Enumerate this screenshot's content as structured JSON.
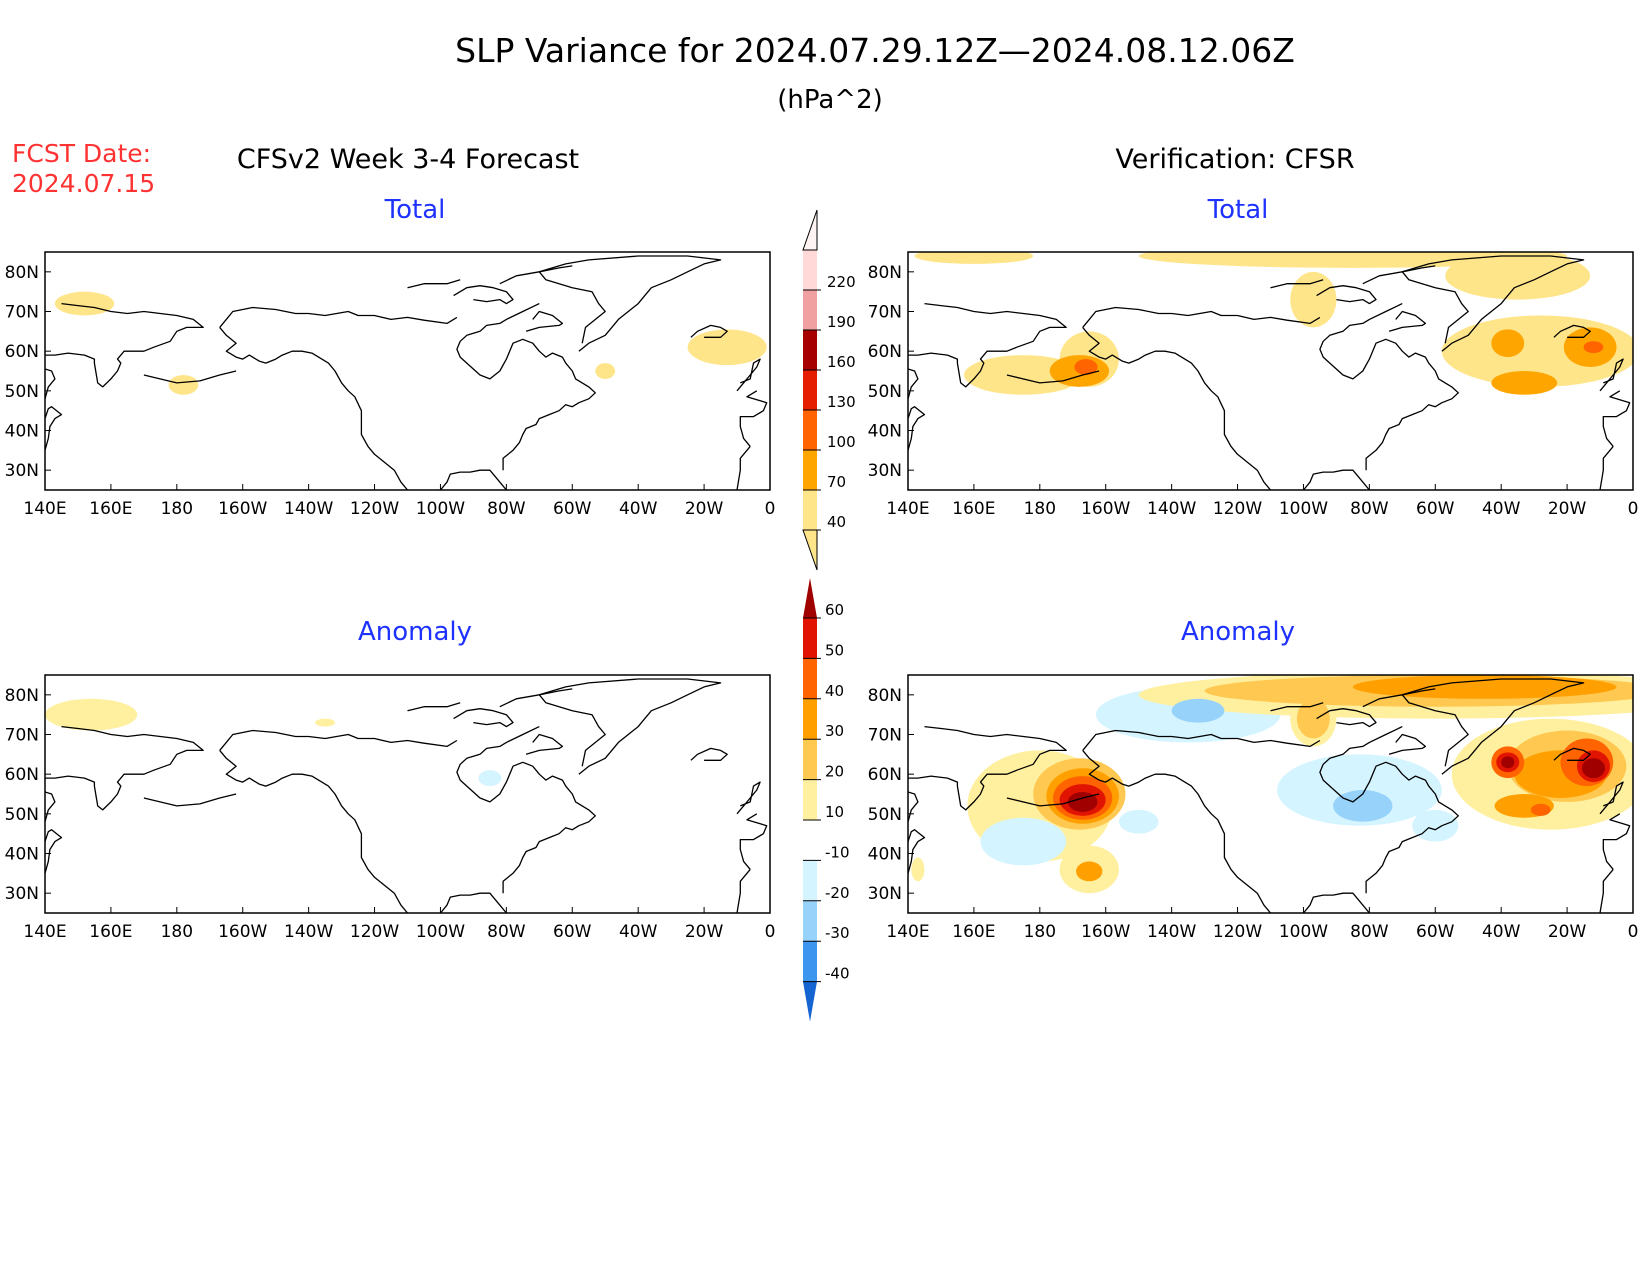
{
  "figure": {
    "title": "SLP Variance for 2024.07.29.12Z—2024.08.12.06Z",
    "units": "(hPa^2)",
    "fcst_date_label": "FCST Date:",
    "fcst_date_value": "2024.07.15",
    "left_column_title": "CFSv2 Week 3-4 Forecast",
    "right_column_title": "Verification: CFSR"
  },
  "panels": [
    {
      "id": "forecast-total",
      "subtitle": "Total",
      "subtitle_color": "#1e32ff",
      "field": "total",
      "contours": [
        {
          "value": 40,
          "cx": 152,
          "cy": 72,
          "rx": 9,
          "ry": 3
        },
        {
          "value": 40,
          "cx": -178,
          "cy": 51.5,
          "rx": 4.5,
          "ry": 2.5
        },
        {
          "value": 40,
          "cx": -50,
          "cy": 55,
          "rx": 3,
          "ry": 2
        },
        {
          "value": 40,
          "cx": -13,
          "cy": 61,
          "rx": 12,
          "ry": 4.5
        }
      ]
    },
    {
      "id": "verification-total",
      "subtitle": "Total",
      "subtitle_color": "#1e32ff",
      "field": "total",
      "contours": [
        {
          "value": 40,
          "cx": 175,
          "cy": 54,
          "rx": 18,
          "ry": 5
        },
        {
          "value": 40,
          "cx": -165,
          "cy": 58,
          "rx": 9,
          "ry": 7
        },
        {
          "value": 70,
          "cx": -168,
          "cy": 55,
          "rx": 9,
          "ry": 4
        },
        {
          "value": 100,
          "cx": -166,
          "cy": 56,
          "rx": 3.5,
          "ry": 2
        },
        {
          "value": 40,
          "cx": -85,
          "cy": 84,
          "rx": 65,
          "ry": 3
        },
        {
          "value": 40,
          "cx": -97,
          "cy": 73,
          "rx": 7,
          "ry": 7
        },
        {
          "value": 40,
          "cx": -28,
          "cy": 60,
          "rx": 30,
          "ry": 9
        },
        {
          "value": 40,
          "cx": -35,
          "cy": 79,
          "rx": 22,
          "ry": 6
        },
        {
          "value": 70,
          "cx": -38,
          "cy": 62,
          "rx": 5,
          "ry": 3.5
        },
        {
          "value": 70,
          "cx": -13,
          "cy": 61,
          "rx": 8,
          "ry": 5
        },
        {
          "value": 70,
          "cx": -33,
          "cy": 52,
          "rx": 10,
          "ry": 3
        },
        {
          "value": 100,
          "cx": -12,
          "cy": 61,
          "rx": 3,
          "ry": 1.5
        },
        {
          "value": 40,
          "cx": 160,
          "cy": 84,
          "rx": 18,
          "ry": 2
        }
      ]
    },
    {
      "id": "forecast-anomaly",
      "subtitle": "Anomaly",
      "subtitle_color": "#1e32ff",
      "field": "anomaly",
      "contours": [
        {
          "value": 10,
          "cx": 154,
          "cy": 75,
          "rx": 14,
          "ry": 4
        },
        {
          "value": 10,
          "cx": -135,
          "cy": 73,
          "rx": 3,
          "ry": 1
        },
        {
          "value": -10,
          "cx": -85,
          "cy": 59,
          "rx": 3.5,
          "ry": 2
        }
      ]
    },
    {
      "id": "verification-anomaly",
      "subtitle": "Anomaly",
      "subtitle_color": "#1e32ff",
      "field": "anomaly",
      "contours": [
        {
          "value": 10,
          "cx": 180,
          "cy": 52,
          "rx": 22,
          "ry": 14
        },
        {
          "value": 20,
          "cx": -168,
          "cy": 55,
          "rx": 14,
          "ry": 9
        },
        {
          "value": 30,
          "cx": -167,
          "cy": 54.5,
          "rx": 11,
          "ry": 7
        },
        {
          "value": 40,
          "cx": -167,
          "cy": 54,
          "rx": 9,
          "ry": 5.5
        },
        {
          "value": 50,
          "cx": -167,
          "cy": 53.5,
          "rx": 7,
          "ry": 4
        },
        {
          "value": 60,
          "cx": -167,
          "cy": 53,
          "rx": 4.5,
          "ry": 2.5
        },
        {
          "value": 10,
          "cx": -165,
          "cy": 36,
          "rx": 9,
          "ry": 6
        },
        {
          "value": 30,
          "cx": -165,
          "cy": 35.5,
          "rx": 4,
          "ry": 2.5
        },
        {
          "value": -10,
          "cx": -135,
          "cy": 75,
          "rx": 28,
          "ry": 7
        },
        {
          "value": -20,
          "cx": -132,
          "cy": 76,
          "rx": 8,
          "ry": 3
        },
        {
          "value": -10,
          "cx": 175,
          "cy": 43,
          "rx": 13,
          "ry": 6
        },
        {
          "value": -10,
          "cx": -150,
          "cy": 48,
          "rx": 6,
          "ry": 3
        },
        {
          "value": -10,
          "cx": -83,
          "cy": 56,
          "rx": 25,
          "ry": 9
        },
        {
          "value": -20,
          "cx": -82,
          "cy": 52,
          "rx": 9,
          "ry": 4
        },
        {
          "value": -10,
          "cx": -60,
          "cy": 47,
          "rx": 7,
          "ry": 4
        },
        {
          "value": 10,
          "cx": -60,
          "cy": 80,
          "rx": 90,
          "ry": 6
        },
        {
          "value": 20,
          "cx": -60,
          "cy": 81,
          "rx": 70,
          "ry": 4
        },
        {
          "value": 30,
          "cx": -45,
          "cy": 82,
          "rx": 40,
          "ry": 3
        },
        {
          "value": 10,
          "cx": -97,
          "cy": 74,
          "rx": 7,
          "ry": 7
        },
        {
          "value": 20,
          "cx": -97,
          "cy": 74,
          "rx": 5,
          "ry": 5
        },
        {
          "value": 10,
          "cx": -25,
          "cy": 60,
          "rx": 30,
          "ry": 14
        },
        {
          "value": 20,
          "cx": -20,
          "cy": 62,
          "rx": 18,
          "ry": 9
        },
        {
          "value": 30,
          "cx": -22,
          "cy": 60,
          "rx": 14,
          "ry": 6
        },
        {
          "value": 40,
          "cx": -14,
          "cy": 63,
          "rx": 8,
          "ry": 6
        },
        {
          "value": 50,
          "cx": -12,
          "cy": 62,
          "rx": 5,
          "ry": 4
        },
        {
          "value": 60,
          "cx": -12,
          "cy": 61.5,
          "rx": 3.5,
          "ry": 2.5
        },
        {
          "value": 40,
          "cx": -38,
          "cy": 63,
          "rx": 5,
          "ry": 4
        },
        {
          "value": 50,
          "cx": -38,
          "cy": 63,
          "rx": 3.5,
          "ry": 2.5
        },
        {
          "value": 60,
          "cx": -38,
          "cy": 63,
          "rx": 2,
          "ry": 1.5
        },
        {
          "value": 30,
          "cx": -33,
          "cy": 52,
          "rx": 9,
          "ry": 3
        },
        {
          "value": 40,
          "cx": -28,
          "cy": 51,
          "rx": 3,
          "ry": 1.5
        },
        {
          "value": 10,
          "cx": 143,
          "cy": 36,
          "rx": 2,
          "ry": 3
        }
      ]
    }
  ],
  "axes": {
    "lon_ticks": [
      "140E",
      "160E",
      "180",
      "160W",
      "140W",
      "120W",
      "100W",
      "80W",
      "60W",
      "40W",
      "20W",
      "0"
    ],
    "lat_ticks": [
      "80N",
      "70N",
      "60N",
      "50N",
      "40N",
      "30N"
    ]
  },
  "colorbars": {
    "total": {
      "levels": [
        "40",
        "70",
        "100",
        "130",
        "160",
        "190",
        "220"
      ],
      "colors": [
        "#ffe58a",
        "#ffa500",
        "#ff6400",
        "#e61e00",
        "#a60000",
        "#f0a0a0",
        "#ffd8d8",
        "#fff4f4"
      ]
    },
    "anomaly": {
      "levels": [
        "-40",
        "-30",
        "-20",
        "-10",
        "10",
        "20",
        "30",
        "40",
        "50",
        "60"
      ],
      "colors": [
        "#1464d2",
        "#3c96f0",
        "#96d2fa",
        "#d4f4ff",
        "#ffffff",
        "#fff0a0",
        "#ffc850",
        "#ffa000",
        "#ff6400",
        "#e01400",
        "#a00000"
      ]
    }
  },
  "colors": {
    "land": "#ffffff",
    "coastline": "#000000",
    "title_text": "#000000",
    "fcst_text": "#ff3232",
    "subtitle_text": "#1e32ff"
  }
}
